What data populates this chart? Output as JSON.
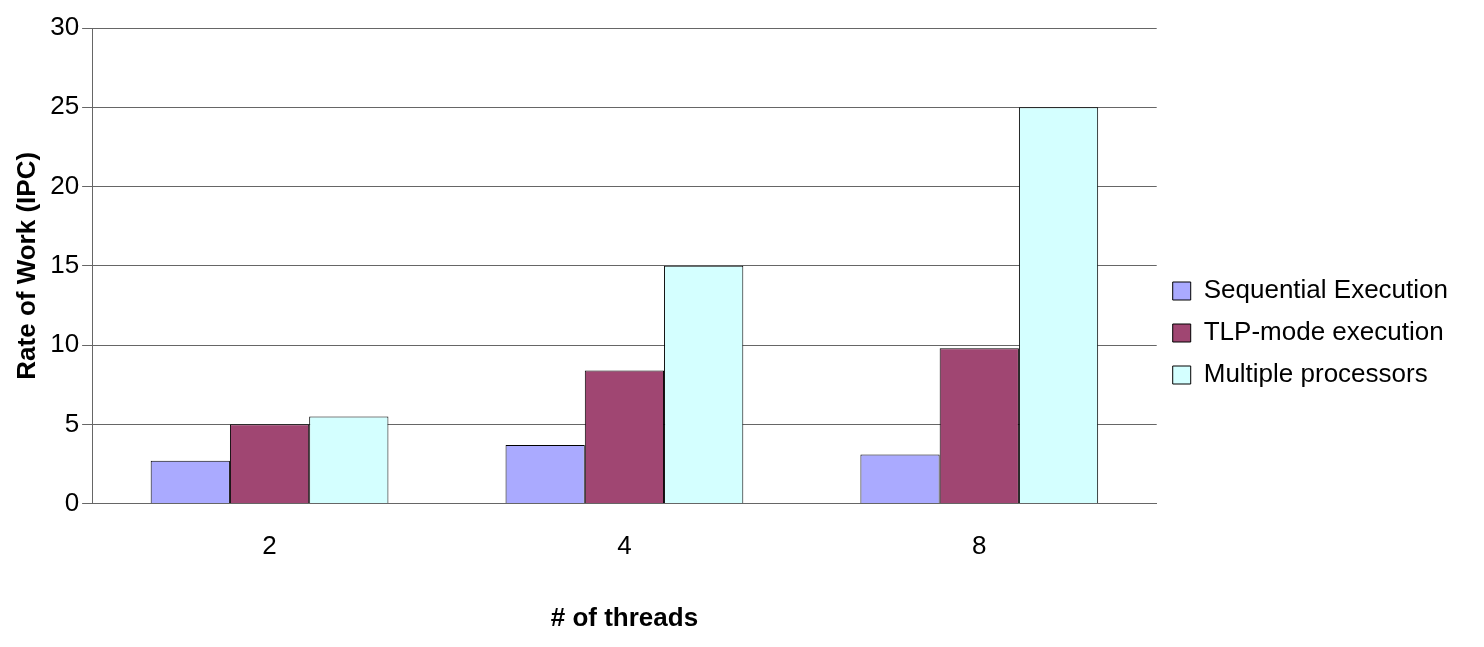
{
  "chart_data": {
    "type": "bar",
    "xlabel": "# of threads",
    "ylabel": "Rate of Work (IPC)",
    "categories": [
      "2",
      "4",
      "8"
    ],
    "series": [
      {
        "name": "Sequential Execution",
        "color": "#aaaaff",
        "values": [
          2.7,
          3.7,
          3.1
        ]
      },
      {
        "name": "TLP-mode execution",
        "color": "#a04672",
        "values": [
          5.0,
          8.4,
          9.8
        ]
      },
      {
        "name": "Multiple processors",
        "color": "#d4ffff",
        "values": [
          5.5,
          15,
          25
        ]
      }
    ],
    "ylim": [
      0,
      30
    ],
    "yticks": [
      0,
      5,
      10,
      15,
      20,
      25,
      30
    ],
    "grid": "y",
    "legend": "right"
  }
}
